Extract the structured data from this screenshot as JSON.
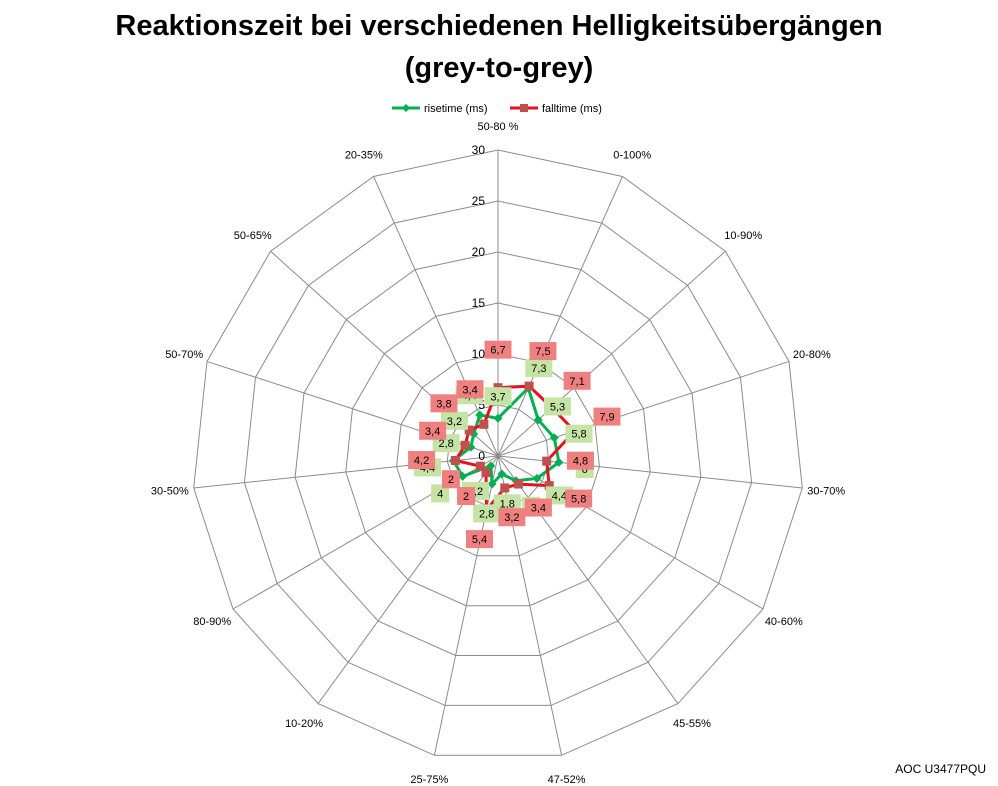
{
  "chart_data": {
    "type": "radar",
    "title": "Reaktionszeit bei verschiedenen Helligkeitsübergängen",
    "subtitle": "(grey-to-grey)",
    "categories": [
      "50-80 %",
      "0-100%",
      "10-90%",
      "20-80%",
      "30-70%",
      "40-60%",
      "45-55%",
      "47-52%",
      "25-75%",
      "10-20%",
      "80-90%",
      "30-50%",
      "50-70%",
      "50-65%",
      "20-35%"
    ],
    "rlim": [
      0,
      30
    ],
    "rticks": [
      0,
      5,
      10,
      15,
      20,
      25,
      30
    ],
    "grid": true,
    "legend_position": "top",
    "series": [
      {
        "name": "risetime (ms)",
        "color": "#00b050",
        "label_color": "#c4e3a4",
        "values": [
          3.7,
          7.3,
          5.3,
          5.8,
          6,
          4.4,
          3,
          1.8,
          2.8,
          1.2,
          4,
          4.4,
          2.8,
          3.2,
          4.4
        ],
        "labels": [
          "3,7",
          "7,3",
          "5,3",
          "5,8",
          "6",
          "4,4",
          "3",
          "1,8",
          "2,8",
          "1,2",
          "4",
          "4,4",
          "2,8",
          "3,2",
          "4,4"
        ]
      },
      {
        "name": "falltime (ms)",
        "color": "#e0141e",
        "label_color": "#f08080",
        "values": [
          6.7,
          7.5,
          7.1,
          7.9,
          4.8,
          5.8,
          3.4,
          3.2,
          5.4,
          2,
          2,
          4.2,
          3.4,
          3.8,
          3.4
        ],
        "labels": [
          "6,7",
          "7,5",
          "7,1",
          "7,9",
          "4,8",
          "5,8",
          "3,4",
          "3,2",
          "5,4",
          "2",
          "2",
          "4,2",
          "3,4",
          "3,8",
          "3,4"
        ]
      }
    ]
  },
  "credit": "AOC U3477PQU"
}
